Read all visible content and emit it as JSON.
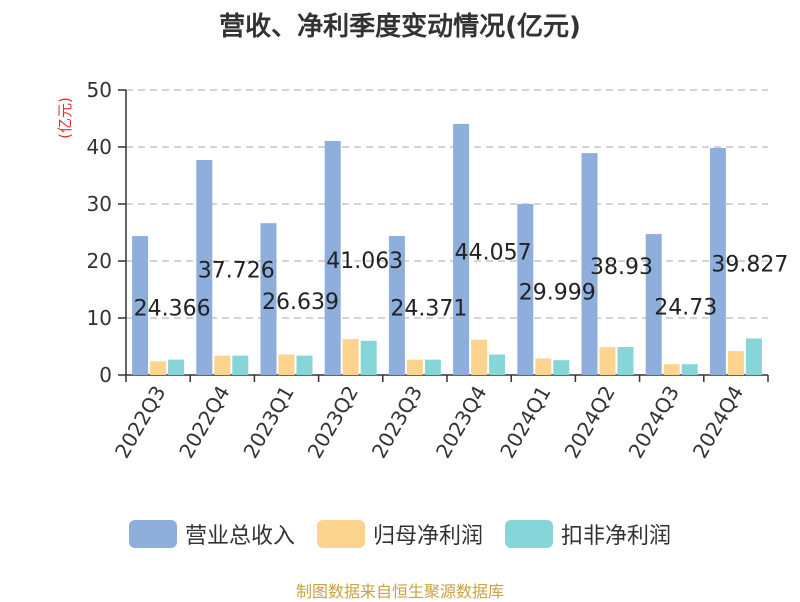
{
  "title": "营收、净利季度变动情况(亿元)",
  "source": "制图数据来自恒生聚源数据库",
  "chart_data": {
    "type": "bar",
    "title": "营收、净利季度变动情况(亿元)",
    "ylabel": "(亿元)",
    "xlabel": "",
    "ylim": [
      0,
      50
    ],
    "yticks": [
      0,
      10,
      20,
      30,
      40,
      50
    ],
    "grid": true,
    "legend_position": "bottom",
    "categories": [
      "2022Q3",
      "2022Q4",
      "2023Q1",
      "2023Q2",
      "2023Q3",
      "2023Q4",
      "2024Q1",
      "2024Q2",
      "2024Q3",
      "2024Q4"
    ],
    "series": [
      {
        "name": "营业总收入",
        "color": "#8eaedb",
        "values": [
          24.366,
          37.726,
          26.639,
          41.063,
          24.371,
          44.057,
          29.999,
          38.93,
          24.73,
          39.827
        ],
        "labels": [
          "24.366",
          "37.726",
          "26.639",
          "41.063",
          "24.371",
          "44.057",
          "29.999",
          "38.93",
          "24.73",
          "39.827"
        ]
      },
      {
        "name": "归母净利润",
        "color": "#fdd48e",
        "values": [
          2.4,
          3.4,
          3.6,
          6.3,
          2.7,
          6.2,
          2.9,
          4.9,
          1.9,
          4.2
        ]
      },
      {
        "name": "扣非净利润",
        "color": "#86d5d8",
        "values": [
          2.7,
          3.4,
          3.4,
          6.0,
          2.7,
          3.6,
          2.6,
          4.9,
          1.9,
          6.4
        ]
      }
    ]
  }
}
